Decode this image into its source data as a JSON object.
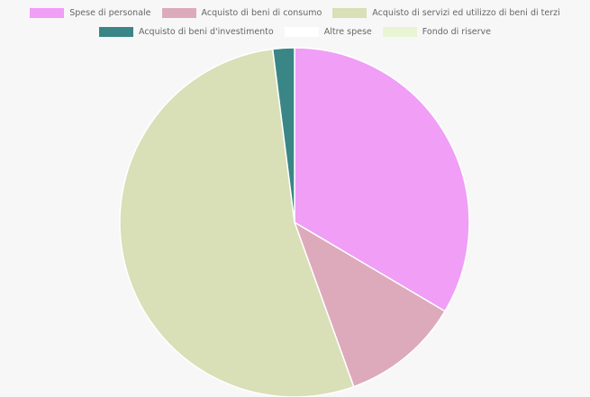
{
  "chart_data": {
    "type": "pie",
    "categories": [
      "Spese di personale",
      "Acquisto di beni di consumo",
      "Acquisto di servizi ed utilizzo di beni di terzi",
      "Acquisto di beni d'investimento",
      "Altre spese",
      "Fondo di riserve"
    ],
    "values": [
      33.5,
      11.0,
      53.5,
      2.0,
      0,
      0
    ],
    "colors": [
      "#f09ef6",
      "#ddaabb",
      "#d9dfb6",
      "#3a8687",
      "#ffffff",
      "#e9f4d5"
    ],
    "legend_position": "top"
  }
}
